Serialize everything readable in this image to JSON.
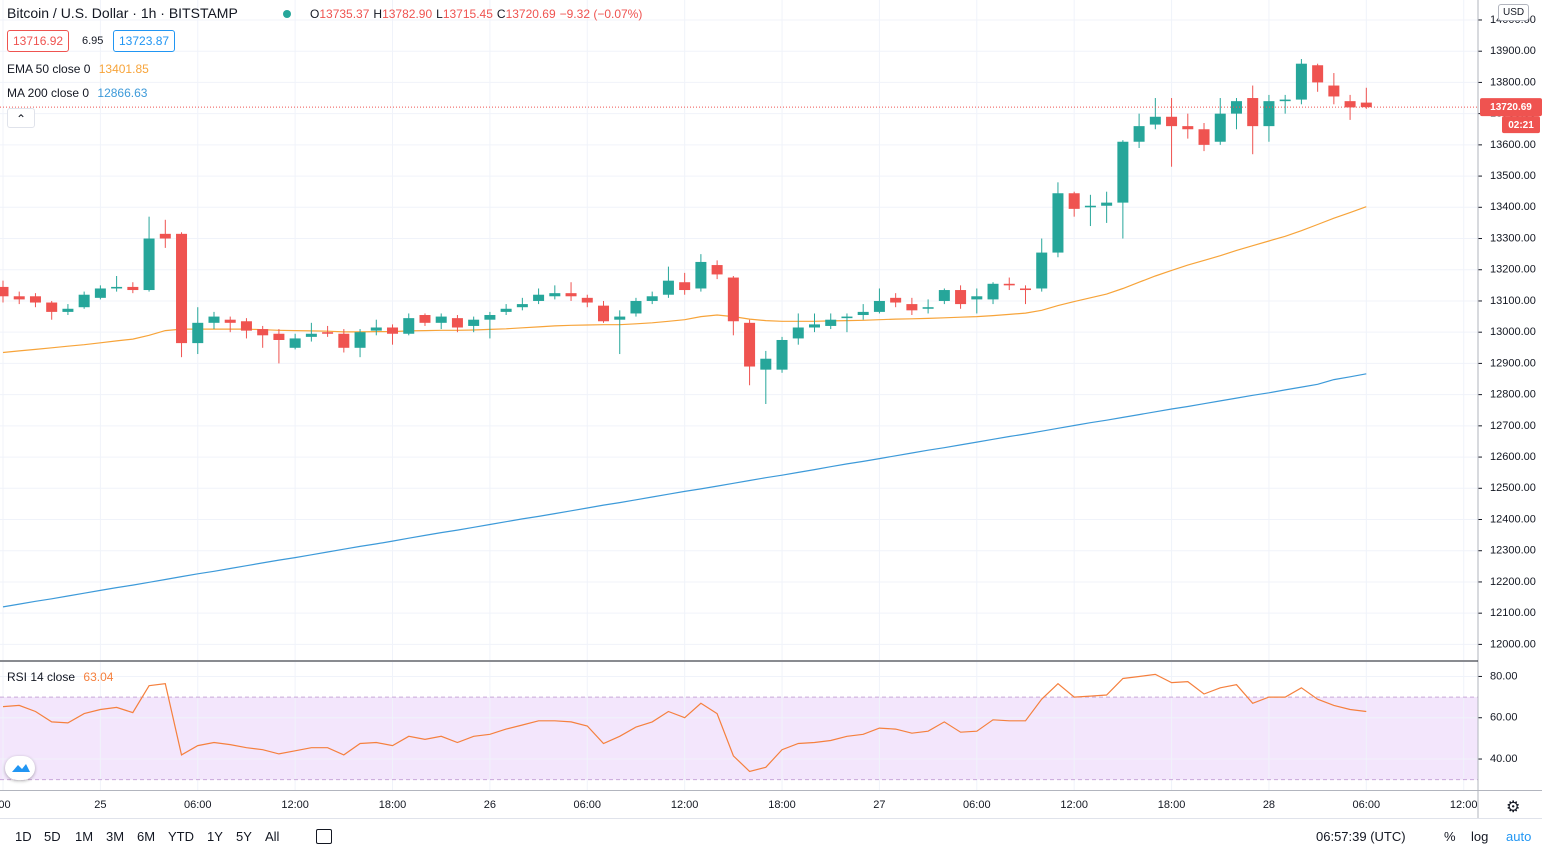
{
  "header": {
    "symbol": "Bitcoin / U.S. Dollar · 1h · BITSTAMP",
    "ohlc": [
      {
        "label": "O",
        "value": "13735.37"
      },
      {
        "label": "H",
        "value": "13782.90"
      },
      {
        "label": "L",
        "value": "13715.45"
      },
      {
        "label": "C",
        "value": "13720.69"
      }
    ],
    "change": "−9.32 (−0.07%)",
    "bid": "13716.92",
    "spread": "6.95",
    "ask": "13723.87"
  },
  "toolbar": {
    "ranges": [
      "1D",
      "5D",
      "1M",
      "3M",
      "6M",
      "YTD",
      "1Y",
      "5Y",
      "All"
    ],
    "clock": "06:57:39 (UTC)",
    "options": [
      "%",
      "log",
      "auto"
    ]
  },
  "chart_data": [
    {
      "type": "candlestick",
      "currency": "USD",
      "up_color": "#26a69a",
      "down_color": "#ef5350",
      "grid": true,
      "categories": [
        ":00",
        null,
        null,
        null,
        null,
        null,
        "25",
        null,
        null,
        null,
        null,
        null,
        "06:00",
        null,
        null,
        null,
        null,
        null,
        "12:00",
        null,
        null,
        null,
        null,
        null,
        "18:00",
        null,
        null,
        null,
        null,
        null,
        "26",
        null,
        null,
        null,
        null,
        null,
        "06:00",
        null,
        null,
        null,
        null,
        null,
        "12:00",
        null,
        null,
        null,
        null,
        null,
        "18:00",
        null,
        null,
        null,
        null,
        null,
        "27",
        null,
        null,
        null,
        null,
        null,
        "06:00",
        null,
        null,
        null,
        null,
        null,
        "12:00",
        null,
        null,
        null,
        null,
        null,
        "18:00",
        null,
        null,
        null,
        null,
        null,
        "28",
        null,
        null,
        null,
        null,
        null,
        "06:00",
        null,
        null,
        null,
        null,
        null,
        "12:00"
      ],
      "open": [
        13145,
        13115,
        13115,
        13095,
        13065,
        13080,
        13110,
        13140,
        13145,
        13135,
        13315,
        13315,
        12965,
        13030,
        13040,
        13035,
        13010,
        12995,
        12950,
        12985,
        13000,
        12995,
        12950,
        13005,
        13015,
        12995,
        13055,
        13030,
        13045,
        13020,
        13040,
        13065,
        13080,
        13100,
        13115,
        13125,
        13110,
        13085,
        13040,
        13060,
        13100,
        13120,
        13160,
        13140,
        13215,
        13175,
        13030,
        12880,
        12880,
        12980,
        13015,
        13020,
        13045,
        13055,
        13065,
        13110,
        13090,
        13075,
        13100,
        13135,
        13105,
        13105,
        13155,
        13140,
        13140,
        13255,
        13445,
        13400,
        13405,
        13415,
        13610,
        13665,
        13690,
        13660,
        13650,
        13610,
        13700,
        13750,
        13660,
        13740,
        13745,
        13855,
        13790,
        13740,
        13735.37,
        null,
        null,
        null,
        null,
        null,
        null
      ],
      "high": [
        13165,
        13130,
        13125,
        13100,
        13090,
        13130,
        13150,
        13180,
        13160,
        13370,
        13360,
        13320,
        13080,
        13065,
        13050,
        13045,
        13020,
        13010,
        12995,
        13030,
        13020,
        13010,
        13010,
        13040,
        13025,
        13060,
        13060,
        13060,
        13055,
        13050,
        13065,
        13090,
        13110,
        13140,
        13150,
        13160,
        13120,
        13100,
        13070,
        13110,
        13130,
        13210,
        13190,
        13250,
        13230,
        13180,
        13040,
        12940,
        12985,
        13060,
        13060,
        13060,
        13060,
        13090,
        13140,
        13125,
        13110,
        13105,
        13140,
        13150,
        13140,
        13160,
        13175,
        13150,
        13300,
        13480,
        13450,
        13440,
        13450,
        13615,
        13700,
        13750,
        13750,
        13700,
        13670,
        13750,
        13750,
        13790,
        13760,
        13760,
        13875,
        13860,
        13830,
        13760,
        13782.9,
        null,
        null,
        null,
        null,
        null,
        null
      ],
      "low": [
        13095,
        13090,
        13080,
        13040,
        13055,
        13075,
        13105,
        13130,
        13125,
        13130,
        13270,
        12920,
        12930,
        13010,
        13000,
        12980,
        12950,
        12900,
        12945,
        12970,
        12985,
        12935,
        12920,
        12990,
        12960,
        12990,
        13020,
        13010,
        13000,
        13000,
        12980,
        13055,
        13070,
        13090,
        13105,
        13100,
        13080,
        13030,
        12930,
        13050,
        13090,
        13110,
        13120,
        13130,
        13170,
        12990,
        12830,
        12770,
        12870,
        12960,
        13000,
        13010,
        13000,
        13040,
        13060,
        13080,
        13055,
        13060,
        13090,
        13075,
        13060,
        13090,
        13135,
        13090,
        13130,
        13240,
        13370,
        13340,
        13350,
        13300,
        13590,
        13650,
        13530,
        13620,
        13580,
        13600,
        13650,
        13570,
        13610,
        13700,
        13730,
        13770,
        13730,
        13680,
        13715.45,
        null,
        null,
        null,
        null,
        null,
        null
      ],
      "close": [
        13115,
        13105,
        13095,
        13065,
        13075,
        13120,
        13140,
        13145,
        13135,
        13300,
        13300,
        12965,
        13030,
        13050,
        13030,
        13005,
        12990,
        12975,
        12980,
        12995,
        12995,
        12950,
        13000,
        13015,
        12995,
        13045,
        13030,
        13050,
        13015,
        13040,
        13055,
        13075,
        13090,
        13120,
        13125,
        13115,
        13095,
        13035,
        13050,
        13100,
        13115,
        13165,
        13135,
        13225,
        13185,
        13035,
        12890,
        12915,
        12975,
        13015,
        13025,
        13040,
        13050,
        13065,
        13100,
        13095,
        13070,
        13080,
        13135,
        13090,
        13115,
        13155,
        13150,
        13135,
        13255,
        13445,
        13395,
        13405,
        13415,
        13610,
        13660,
        13690,
        13660,
        13650,
        13600,
        13700,
        13740,
        13660,
        13740,
        13745,
        13860,
        13800,
        13755,
        13720,
        13720.69,
        null,
        null,
        null,
        null,
        null,
        null
      ],
      "overlays": [
        {
          "name": "EMA 50 close 0",
          "color": "#f7a43a",
          "value_label": "13401.85",
          "values": [
            12935,
            12940,
            12945,
            12950,
            12955,
            12960,
            12966,
            12972,
            12978,
            12990,
            13005,
            13010,
            13010,
            13010,
            13010,
            13010,
            13008,
            13006,
            13005,
            13004,
            13003,
            13001,
            13001,
            13002,
            13002,
            13004,
            13005,
            13006,
            13006,
            13007,
            13009,
            13011,
            13014,
            13017,
            13020,
            13022,
            13023,
            13024,
            13024,
            13027,
            13030,
            13035,
            13040,
            13050,
            13055,
            13050,
            13042,
            13037,
            13035,
            13035,
            13035,
            13036,
            13037,
            13038,
            13040,
            13042,
            13043,
            13044,
            13046,
            13048,
            13050,
            13053,
            13057,
            13061,
            13070,
            13085,
            13098,
            13110,
            13122,
            13140,
            13160,
            13180,
            13198,
            13215,
            13230,
            13245,
            13262,
            13277,
            13292,
            13307,
            13325,
            13345,
            13365,
            13383,
            13401.85,
            null,
            null,
            null,
            null,
            null,
            null
          ]
        },
        {
          "name": "MA 200 close 0",
          "color": "#3d9ad9",
          "value_label": "12866.63",
          "values": [
            12120,
            12129,
            12138,
            12146,
            12155,
            12164,
            12173,
            12182,
            12190,
            12199,
            12208,
            12217,
            12226,
            12234,
            12243,
            12252,
            12261,
            12270,
            12278,
            12287,
            12296,
            12305,
            12314,
            12322,
            12331,
            12340,
            12349,
            12358,
            12366,
            12375,
            12384,
            12393,
            12402,
            12410,
            12419,
            12428,
            12437,
            12446,
            12454,
            12463,
            12472,
            12481,
            12490,
            12498,
            12507,
            12516,
            12525,
            12534,
            12542,
            12551,
            12560,
            12569,
            12578,
            12586,
            12595,
            12604,
            12613,
            12622,
            12630,
            12639,
            12648,
            12657,
            12666,
            12674,
            12683,
            12692,
            12701,
            12710,
            12718,
            12727,
            12736,
            12745,
            12754,
            12762,
            12771,
            12780,
            12789,
            12798,
            12806,
            12815,
            12824,
            12833,
            12848,
            12857,
            12866.63,
            null,
            null,
            null,
            null,
            null,
            null
          ]
        }
      ],
      "last_price_label": "13720.69",
      "countdown": "02:21",
      "ylim": [
        11950,
        14064
      ],
      "yticks": [
        {
          "value": 12000,
          "label": "12000.00"
        },
        {
          "value": 12100,
          "label": "12100.00"
        },
        {
          "value": 12200,
          "label": "12200.00"
        },
        {
          "value": 12300,
          "label": "12300.00"
        },
        {
          "value": 12400,
          "label": "12400.00"
        },
        {
          "value": 12500,
          "label": "12500.00"
        },
        {
          "value": 12600,
          "label": "12600.00"
        },
        {
          "value": 12700,
          "label": "12700.00"
        },
        {
          "value": 12800,
          "label": "12800.00"
        },
        {
          "value": 12900,
          "label": "12900.00"
        },
        {
          "value": 13000,
          "label": "13000.00"
        },
        {
          "value": 13100,
          "label": "13100.00"
        },
        {
          "value": 13200,
          "label": "13200.00"
        },
        {
          "value": 13300,
          "label": "13300.00"
        },
        {
          "value": 13400,
          "label": "13400.00"
        },
        {
          "value": 13500,
          "label": "13500.00"
        },
        {
          "value": 13600,
          "label": "13600.00"
        },
        {
          "value": 13700,
          "label": "13700.00"
        },
        {
          "value": 13800,
          "label": "13800.00"
        },
        {
          "value": 13900,
          "label": "13900.00"
        },
        {
          "value": 14000,
          "label": "14000.00"
        }
      ]
    },
    {
      "type": "line",
      "grid": true,
      "series": [
        {
          "name": "RSI 14 close",
          "color": "#f5803e",
          "value_label": "63.04",
          "values": [
            65.4,
            66,
            63,
            58,
            57.5,
            62,
            64,
            65,
            62.5,
            75.5,
            76.5,
            42,
            46.5,
            48,
            47,
            45.5,
            44.5,
            42.5,
            44,
            45.5,
            45.5,
            42,
            47.5,
            48,
            46.5,
            51,
            49.5,
            51,
            48,
            51,
            52,
            54.5,
            56.5,
            58.5,
            58.5,
            58,
            56,
            47.5,
            51,
            55.5,
            58,
            63,
            60,
            67,
            62,
            41.5,
            34,
            36,
            44.5,
            47.5,
            48,
            49,
            51,
            52,
            55,
            54.5,
            52.5,
            53.5,
            58,
            53,
            53.5,
            59,
            58.5,
            58.5,
            69,
            76.5,
            70,
            70.5,
            71,
            79,
            80,
            81,
            77,
            77.5,
            71.5,
            74.5,
            76,
            67,
            70,
            70,
            74.5,
            69,
            66,
            64,
            63.04,
            null,
            null,
            null,
            null,
            null,
            null
          ]
        }
      ],
      "band": [
        30,
        70
      ],
      "band_color": "#f3e6fc",
      "ylim": [
        25,
        87
      ],
      "yticks": [
        {
          "value": 40,
          "label": "40.00"
        },
        {
          "value": 60,
          "label": "60.00"
        },
        {
          "value": 80,
          "label": "80.00"
        }
      ]
    }
  ]
}
